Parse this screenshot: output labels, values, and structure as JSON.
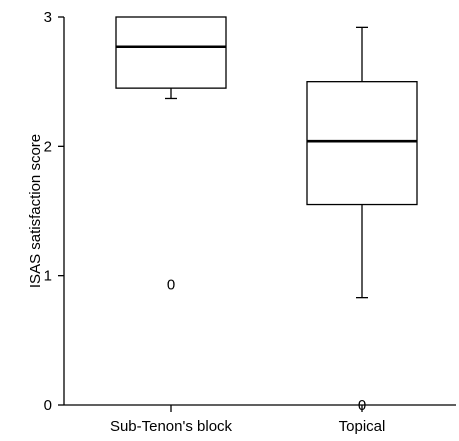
{
  "chart_data": {
    "type": "box",
    "title": "",
    "xlabel": "",
    "ylabel": "ISAS satisfaction score",
    "ylim": [
      0,
      3
    ],
    "yticks": [
      0,
      1,
      2,
      3
    ],
    "yticklabels": [
      "0",
      "1",
      "2",
      "3"
    ],
    "categories": [
      "Sub-Tenon's block",
      "Topical"
    ],
    "boxes": [
      {
        "category": "Sub-Tenon's block",
        "whisker_low": 2.37,
        "q1": 2.45,
        "median": 2.77,
        "q3": 3.0,
        "whisker_high": 3.0,
        "outliers": [
          0.93
        ],
        "outlier_marker": "0"
      },
      {
        "category": "Topical",
        "whisker_low": 0.83,
        "q1": 1.55,
        "median": 2.04,
        "q3": 2.5,
        "whisker_high": 2.92,
        "outliers": [
          0.0
        ],
        "outlier_marker": "0"
      }
    ],
    "grid": false,
    "legend": "none"
  }
}
